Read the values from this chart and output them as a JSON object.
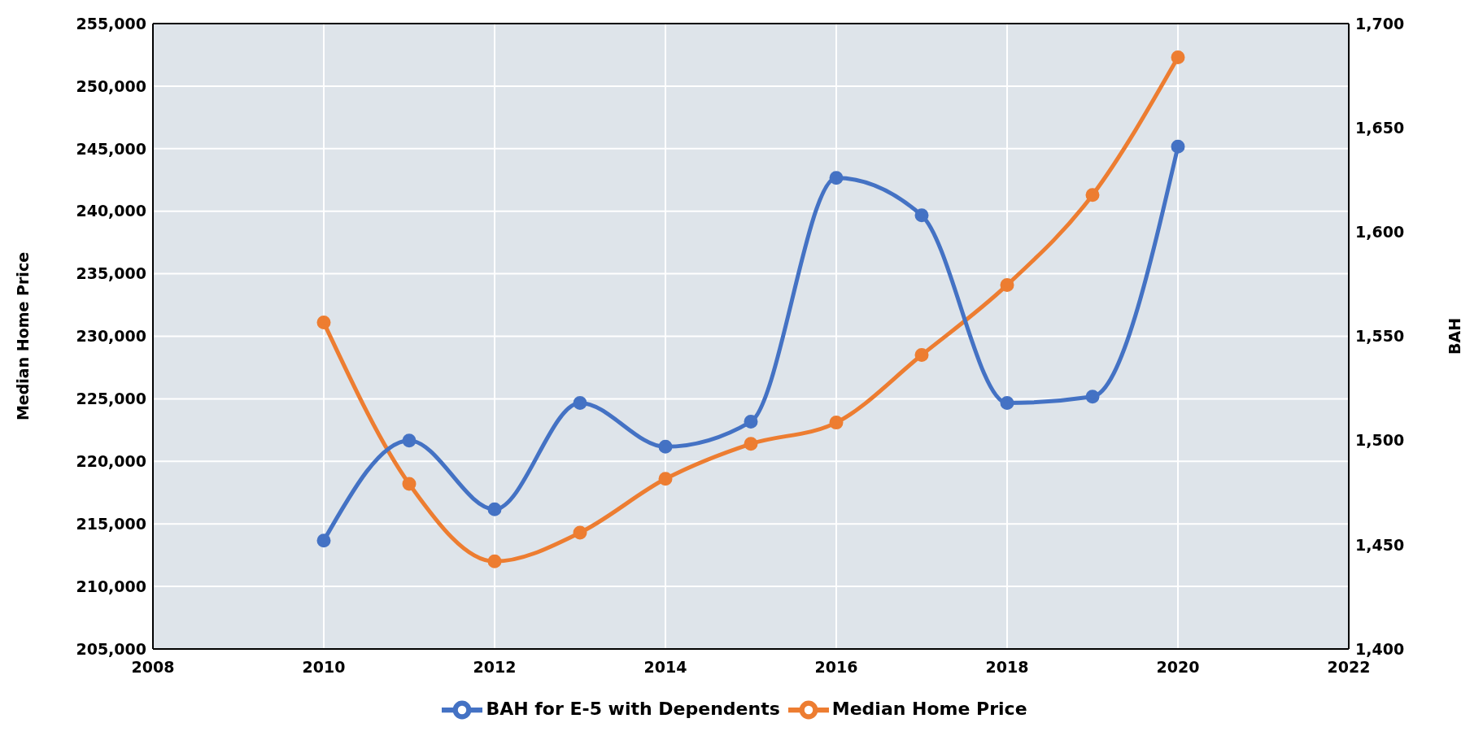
{
  "chart_data": {
    "type": "line",
    "ylabel": "Median Home Price",
    "y2label": "BAH",
    "x": [
      2010,
      2011,
      2012,
      2013,
      2014,
      2015,
      2016,
      2017,
      2018,
      2019,
      2020
    ],
    "series": [
      {
        "name": "Median Home Price",
        "color": "#ed7d31",
        "values": [
          231100,
          218200,
          212000,
          214300,
          218600,
          221400,
          223100,
          228500,
          234100,
          241300,
          252300
        ]
      },
      {
        "name": "BAH for E-5 with Dependents",
        "color": "#4472c4",
        "axis": "y2",
        "values": [
          1452,
          1500,
          1467,
          1518,
          1497,
          1509,
          1626,
          1608,
          1518,
          1521,
          1641
        ]
      }
    ],
    "xlim": [
      2008,
      2022
    ],
    "xticks": [
      2008,
      2010,
      2012,
      2014,
      2016,
      2018,
      2020,
      2022
    ],
    "ylim": [
      205000,
      255000
    ],
    "yticks": [
      {
        "value": 205000,
        "label": "205,000"
      },
      {
        "value": 210000,
        "label": "210,000"
      },
      {
        "value": 215000,
        "label": "215,000"
      },
      {
        "value": 220000,
        "label": "220,000"
      },
      {
        "value": 225000,
        "label": "225,000"
      },
      {
        "value": 230000,
        "label": "230,000"
      },
      {
        "value": 235000,
        "label": "235,000"
      },
      {
        "value": 240000,
        "label": "240,000"
      },
      {
        "value": 245000,
        "label": "245,000"
      },
      {
        "value": 250000,
        "label": "250,000"
      },
      {
        "value": 255000,
        "label": "255,000"
      }
    ],
    "y2lim": [
      1400,
      1700
    ],
    "y2ticks": [
      {
        "value": 1400,
        "label": "1,400"
      },
      {
        "value": 1450,
        "label": "1,450"
      },
      {
        "value": 1500,
        "label": "1,500"
      },
      {
        "value": 1550,
        "label": "1,550"
      },
      {
        "value": 1600,
        "label": "1,600"
      },
      {
        "value": 1650,
        "label": "1,650"
      },
      {
        "value": 1700,
        "label": "1,700"
      }
    ],
    "grid": true,
    "legend": "bottom",
    "marker": "circle",
    "line_style": "solid"
  }
}
